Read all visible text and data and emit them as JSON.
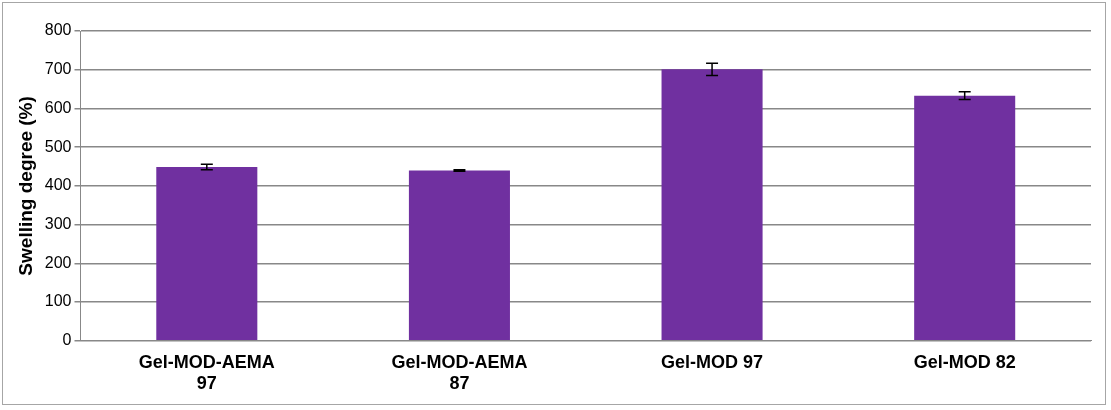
{
  "chart_data": {
    "type": "bar",
    "ylabel": "Swelling degree (%)",
    "categories": [
      "Gel-MOD-AEMA 97",
      "Gel-MOD-AEMA 87",
      "Gel-MOD 97",
      "Gel-MOD 82"
    ],
    "values": [
      449,
      440,
      701,
      633
    ],
    "errors": [
      7,
      2,
      16,
      10
    ],
    "color": "#7030a0",
    "ylim": [
      0,
      800
    ],
    "yticks": [
      0,
      100,
      200,
      300,
      400,
      500,
      600,
      700,
      800
    ],
    "grid": "y"
  }
}
